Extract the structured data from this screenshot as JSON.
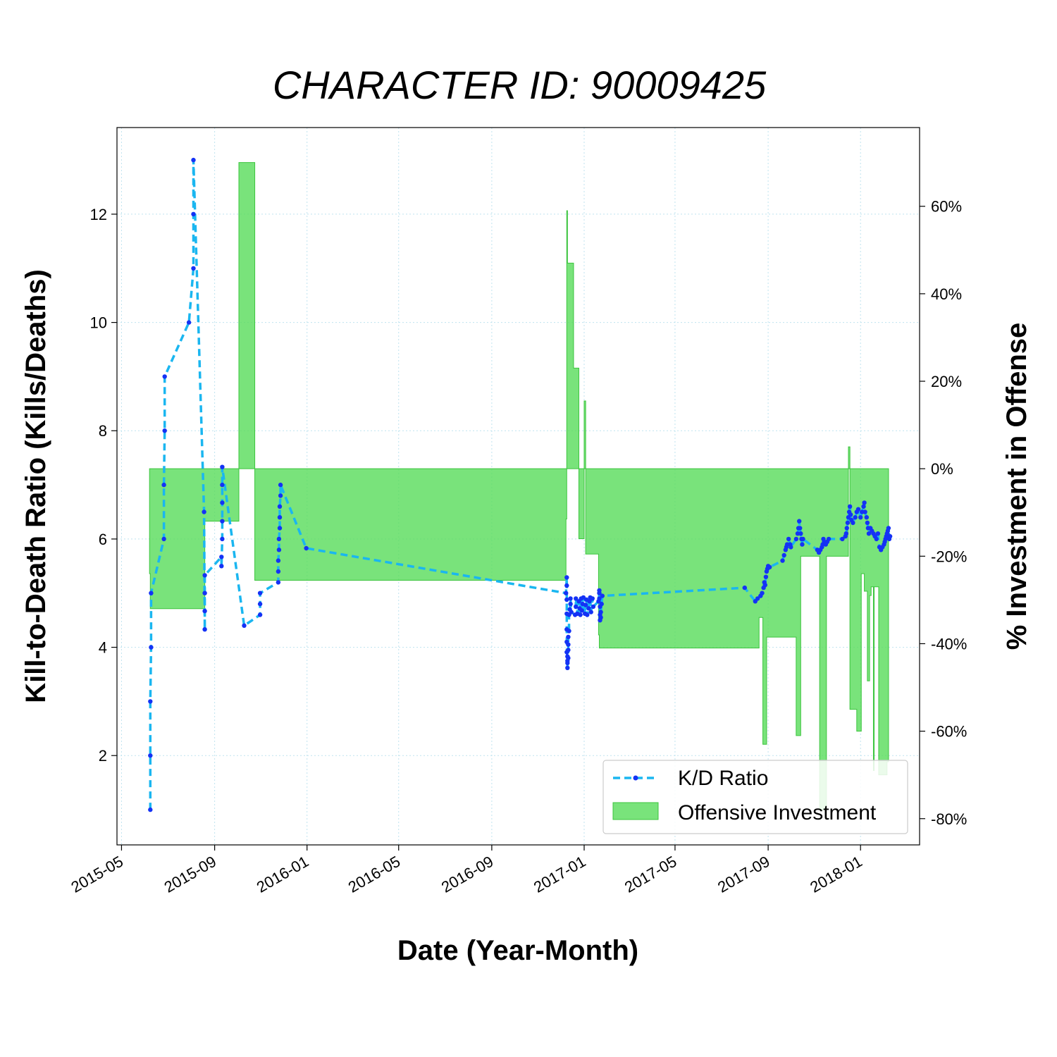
{
  "chart_data": {
    "type": "line",
    "title": "CHARACTER ID: 90009425",
    "xlabel": "Date (Year-Month)",
    "ylabel": "Kill-to-Death Ratio (Kills/Deaths)",
    "y2label": "% Investment in Offense",
    "xlim": [
      "2015-04-25",
      "2018-03-20"
    ],
    "ylim": [
      0.35,
      13.6
    ],
    "y2lim": [
      -86,
      78
    ],
    "x_ticks": [
      "2015-05-01",
      "2015-09-01",
      "2016-01-01",
      "2016-05-01",
      "2016-09-01",
      "2017-01-01",
      "2017-05-01",
      "2017-09-01",
      "2018-01-01"
    ],
    "x_tick_labels": [
      "2015-05",
      "2015-09",
      "2016-01",
      "2016-05",
      "2016-09",
      "2017-01",
      "2017-05",
      "2017-09",
      "2018-01"
    ],
    "y_ticks": [
      2,
      4,
      6,
      8,
      10,
      12
    ],
    "y_tick_labels": [
      "2",
      "4",
      "6",
      "8",
      "10",
      "12"
    ],
    "y2_ticks": [
      -80,
      -60,
      -40,
      -20,
      0,
      20,
      40,
      60
    ],
    "y2_tick_labels": [
      "-80%",
      "-60%",
      "-40%",
      "-20%",
      "0%",
      "20%",
      "40%",
      "60%"
    ],
    "grid": true,
    "legend_position": "lower-right",
    "colors": {
      "kd_line": "#1ab6f0",
      "kd_marker": "#1432f5",
      "investment_fill": "#58dc5a",
      "investment_edge": "#3cc43e",
      "grid": "#bfe3ef"
    },
    "series": [
      {
        "name": "K/D Ratio",
        "axis": "left",
        "style": "dashed-line-markers",
        "points": [
          [
            "2015-06-08",
            1.0
          ],
          [
            "2015-06-08",
            2.0
          ],
          [
            "2015-06-08",
            3.0
          ],
          [
            "2015-06-09",
            4.0
          ],
          [
            "2015-06-09",
            5.0
          ],
          [
            "2015-06-26",
            6.0
          ],
          [
            "2015-06-26",
            7.0
          ],
          [
            "2015-06-27",
            8.0
          ],
          [
            "2015-06-27",
            9.0
          ],
          [
            "2015-07-29",
            10.0
          ],
          [
            "2015-08-04",
            11.0
          ],
          [
            "2015-08-04",
            12.0
          ],
          [
            "2015-08-04",
            13.0
          ],
          [
            "2015-08-18",
            6.5
          ],
          [
            "2015-08-19",
            4.33
          ],
          [
            "2015-08-19",
            4.67
          ],
          [
            "2015-08-19",
            5.0
          ],
          [
            "2015-08-19",
            5.33
          ],
          [
            "2015-09-10",
            5.67
          ],
          [
            "2015-09-10",
            5.5
          ],
          [
            "2015-09-11",
            6.0
          ],
          [
            "2015-09-11",
            6.33
          ],
          [
            "2015-09-11",
            6.67
          ],
          [
            "2015-09-11",
            7.0
          ],
          [
            "2015-09-11",
            7.33
          ],
          [
            "2015-10-10",
            4.4
          ],
          [
            "2015-10-31",
            4.6
          ],
          [
            "2015-10-31",
            4.8
          ],
          [
            "2015-10-31",
            5.0
          ],
          [
            "2015-11-24",
            5.2
          ],
          [
            "2015-11-24",
            5.4
          ],
          [
            "2015-11-24",
            5.6
          ],
          [
            "2015-11-25",
            5.8
          ],
          [
            "2015-11-25",
            6.0
          ],
          [
            "2015-11-26",
            6.2
          ],
          [
            "2015-11-26",
            6.4
          ],
          [
            "2015-11-26",
            6.6
          ],
          [
            "2015-11-27",
            6.8
          ],
          [
            "2015-11-27",
            7.0
          ],
          [
            "2015-12-31",
            5.83
          ],
          [
            "2016-12-08",
            5.0
          ],
          [
            "2016-12-09",
            5.29
          ],
          [
            "2016-12-09",
            5.14
          ],
          [
            "2016-12-09",
            4.88
          ],
          [
            "2016-12-09",
            4.62
          ],
          [
            "2016-12-09",
            4.33
          ],
          [
            "2016-12-09",
            4.1
          ],
          [
            "2016-12-09",
            3.91
          ],
          [
            "2016-12-10",
            3.83
          ],
          [
            "2016-12-10",
            3.75
          ],
          [
            "2016-12-10",
            3.62
          ],
          [
            "2016-12-10",
            3.71
          ],
          [
            "2016-12-11",
            3.8
          ],
          [
            "2016-12-11",
            3.95
          ],
          [
            "2016-12-11",
            4.05
          ],
          [
            "2016-12-11",
            4.19
          ],
          [
            "2016-12-12",
            4.3
          ],
          [
            "2016-12-12",
            4.6
          ],
          [
            "2016-12-13",
            4.7
          ],
          [
            "2016-12-14",
            4.8
          ],
          [
            "2016-12-14",
            4.9
          ],
          [
            "2016-12-15",
            4.65
          ],
          [
            "2016-12-20",
            4.6
          ],
          [
            "2016-12-21",
            4.75
          ],
          [
            "2016-12-21",
            4.9
          ],
          [
            "2016-12-23",
            4.62
          ],
          [
            "2016-12-25",
            4.85
          ],
          [
            "2016-12-26",
            4.72
          ],
          [
            "2016-12-27",
            4.6
          ],
          [
            "2016-12-28",
            4.9
          ],
          [
            "2016-12-29",
            4.68
          ],
          [
            "2016-12-30",
            4.8
          ],
          [
            "2016-12-31",
            4.92
          ],
          [
            "2017-01-02",
            4.62
          ],
          [
            "2017-01-03",
            4.78
          ],
          [
            "2017-01-04",
            4.88
          ],
          [
            "2017-01-05",
            4.6
          ],
          [
            "2017-01-07",
            4.72
          ],
          [
            "2017-01-08",
            4.85
          ],
          [
            "2017-01-09",
            4.92
          ],
          [
            "2017-01-10",
            4.65
          ],
          [
            "2017-01-12",
            4.9
          ],
          [
            "2017-01-13",
            4.75
          ],
          [
            "2017-01-20",
            4.85
          ],
          [
            "2017-01-21",
            5.0
          ],
          [
            "2017-01-21",
            5.05
          ],
          [
            "2017-01-21",
            4.9
          ],
          [
            "2017-01-22",
            4.75
          ],
          [
            "2017-01-22",
            4.6
          ],
          [
            "2017-01-22",
            4.5
          ],
          [
            "2017-01-23",
            4.55
          ],
          [
            "2017-01-23",
            4.65
          ],
          [
            "2017-01-24",
            4.8
          ],
          [
            "2017-01-25",
            4.95
          ],
          [
            "2017-08-01",
            5.1
          ],
          [
            "2017-08-15",
            4.85
          ],
          [
            "2017-08-18",
            4.9
          ],
          [
            "2017-08-22",
            4.95
          ],
          [
            "2017-08-24",
            5.0
          ],
          [
            "2017-08-26",
            5.1
          ],
          [
            "2017-08-27",
            5.2
          ],
          [
            "2017-08-28",
            5.15
          ],
          [
            "2017-08-29",
            5.3
          ],
          [
            "2017-08-30",
            5.4
          ],
          [
            "2017-08-31",
            5.45
          ],
          [
            "2017-09-01",
            5.5
          ],
          [
            "2017-09-03",
            5.48
          ],
          [
            "2017-09-20",
            5.6
          ],
          [
            "2017-09-22",
            5.7
          ],
          [
            "2017-09-24",
            5.8
          ],
          [
            "2017-09-25",
            5.85
          ],
          [
            "2017-09-26",
            5.9
          ],
          [
            "2017-09-28",
            6.0
          ],
          [
            "2017-09-30",
            5.9
          ],
          [
            "2017-10-01",
            5.85
          ],
          [
            "2017-10-08",
            6.0
          ],
          [
            "2017-10-10",
            6.1
          ],
          [
            "2017-10-11",
            6.2
          ],
          [
            "2017-10-12",
            6.33
          ],
          [
            "2017-10-13",
            6.2
          ],
          [
            "2017-10-14",
            6.1
          ],
          [
            "2017-10-15",
            6.0
          ],
          [
            "2017-10-16",
            5.9
          ],
          [
            "2017-10-17",
            6.0
          ],
          [
            "2017-11-05",
            5.8
          ],
          [
            "2017-11-07",
            5.75
          ],
          [
            "2017-11-09",
            5.8
          ],
          [
            "2017-11-11",
            5.85
          ],
          [
            "2017-11-12",
            5.9
          ],
          [
            "2017-11-13",
            6.0
          ],
          [
            "2017-11-14",
            5.95
          ],
          [
            "2017-11-16",
            5.9
          ],
          [
            "2017-11-18",
            5.95
          ],
          [
            "2017-11-20",
            6.0
          ],
          [
            "2017-12-08",
            6.0
          ],
          [
            "2017-12-12",
            6.05
          ],
          [
            "2017-12-13",
            6.1
          ],
          [
            "2017-12-14",
            6.2
          ],
          [
            "2017-12-15",
            6.3
          ],
          [
            "2017-12-16",
            6.4
          ],
          [
            "2017-12-17",
            6.5
          ],
          [
            "2017-12-18",
            6.6
          ],
          [
            "2017-12-19",
            6.45
          ],
          [
            "2017-12-20",
            6.35
          ],
          [
            "2017-12-22",
            6.3
          ],
          [
            "2017-12-25",
            6.4
          ],
          [
            "2017-12-27",
            6.5
          ],
          [
            "2017-12-29",
            6.55
          ],
          [
            "2018-01-01",
            6.4
          ],
          [
            "2018-01-03",
            6.5
          ],
          [
            "2018-01-05",
            6.6
          ],
          [
            "2018-01-06",
            6.67
          ],
          [
            "2018-01-07",
            6.5
          ],
          [
            "2018-01-09",
            6.4
          ],
          [
            "2018-01-10",
            6.3
          ],
          [
            "2018-01-11",
            6.2
          ],
          [
            "2018-01-12",
            6.1
          ],
          [
            "2018-01-14",
            6.2
          ],
          [
            "2018-01-16",
            6.15
          ],
          [
            "2018-01-18",
            6.1
          ],
          [
            "2018-01-20",
            6.05
          ],
          [
            "2018-01-22",
            6.0
          ],
          [
            "2018-01-24",
            6.1
          ],
          [
            "2018-01-26",
            5.85
          ],
          [
            "2018-01-28",
            5.8
          ],
          [
            "2018-01-30",
            5.85
          ],
          [
            "2018-02-01",
            5.9
          ],
          [
            "2018-02-02",
            5.95
          ],
          [
            "2018-02-03",
            6.0
          ],
          [
            "2018-02-04",
            6.05
          ],
          [
            "2018-02-05",
            6.1
          ],
          [
            "2018-02-06",
            6.15
          ],
          [
            "2018-02-07",
            6.2
          ],
          [
            "2018-02-08",
            6.0
          ],
          [
            "2018-02-09",
            6.05
          ]
        ]
      },
      {
        "name": "Offensive Investment",
        "axis": "right",
        "style": "step-fill",
        "steps": [
          [
            "2015-06-07",
            -24
          ],
          [
            "2015-06-08",
            -32
          ],
          [
            "2015-08-19",
            -12
          ],
          [
            "2015-09-01",
            -12
          ],
          [
            "2015-10-03",
            70
          ],
          [
            "2015-10-24",
            -25.5
          ],
          [
            "2016-12-08",
            -11.5
          ],
          [
            "2016-12-09",
            59
          ],
          [
            "2016-12-10",
            47
          ],
          [
            "2016-12-18",
            23
          ],
          [
            "2016-12-25",
            -16
          ],
          [
            "2017-01-01",
            15.5
          ],
          [
            "2017-01-03",
            -19.5
          ],
          [
            "2017-01-20",
            -38
          ],
          [
            "2017-01-21",
            -41
          ],
          [
            "2017-08-20",
            -34
          ],
          [
            "2017-08-25",
            -63
          ],
          [
            "2017-08-30",
            -38.5
          ],
          [
            "2017-10-08",
            -61
          ],
          [
            "2017-10-14",
            -20
          ],
          [
            "2017-11-08",
            -78
          ],
          [
            "2017-11-17",
            -20
          ],
          [
            "2017-12-16",
            5
          ],
          [
            "2017-12-18",
            -55
          ],
          [
            "2017-12-27",
            -60
          ],
          [
            "2018-01-02",
            -24
          ],
          [
            "2018-01-06",
            -28
          ],
          [
            "2018-01-10",
            -48.5
          ],
          [
            "2018-01-13",
            -29
          ],
          [
            "2018-01-15",
            -27
          ],
          [
            "2018-01-18",
            -69
          ],
          [
            "2018-01-19",
            -27
          ],
          [
            "2018-01-25",
            -70
          ],
          [
            "2018-02-05",
            -67
          ],
          [
            "2018-02-07",
            -67
          ]
        ]
      }
    ],
    "legend": [
      {
        "label": "K/D Ratio"
      },
      {
        "label": "Offensive Investment"
      }
    ]
  }
}
